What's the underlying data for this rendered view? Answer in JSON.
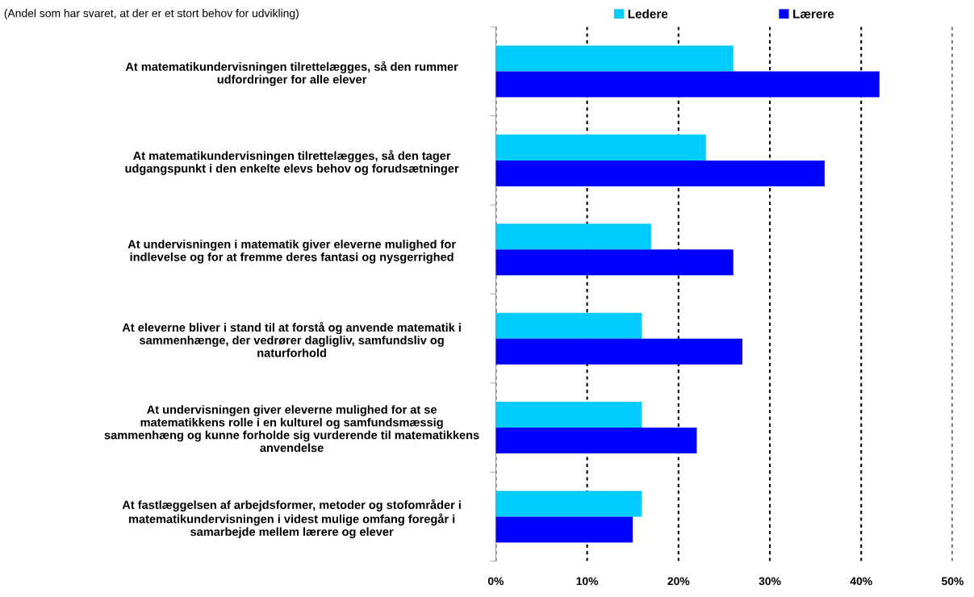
{
  "chart_data": {
    "type": "bar",
    "orientation": "horizontal",
    "subtitle": "(Andel som har svaret, at der er et stort behov for udvikling)",
    "categories": [
      "At matematikundervisningen tilrettelægges, så den rummer\nudfordringer for alle elever",
      "At matematikundervisningen tilrettelægges, så den tager\nudgangspunkt i den enkelte elevs behov og forudsætninger",
      "At undervisningen i matematik giver eleverne mulighed for\nindlevelse og for at fremme deres fantasi og nysgerrighed",
      "At eleverne bliver i stand til at forstå og anvende matematik i\nsammenhænge, der vedrører dagligliv, samfundsliv og\nnaturforhold",
      "At undervisningen giver eleverne mulighed for at se\nmatematikkens rolle i en kulturel og samfundsmæssig\nsammenhæng og kunne forholde sig vurderende til matematikkens\nanvendelse",
      "At fastlæggelsen af arbejdsformer, metoder og stofområder i\nmatematikundervisningen i videst mulige omfang foregår i\nsamarbejde mellem lærere og elever"
    ],
    "series": [
      {
        "name": "Ledere",
        "color": "#00ccff",
        "values": [
          26,
          23,
          17,
          16,
          16,
          16
        ]
      },
      {
        "name": "Lærere",
        "color": "#0000ff",
        "values": [
          42,
          36,
          26,
          27,
          22,
          15
        ]
      }
    ],
    "xlim": [
      0,
      50
    ],
    "xticks": [
      {
        "value": 0,
        "label": "0%"
      },
      {
        "value": 10,
        "label": "10%"
      },
      {
        "value": 20,
        "label": "20%"
      },
      {
        "value": 30,
        "label": "30%"
      },
      {
        "value": 40,
        "label": "40%"
      },
      {
        "value": 50,
        "label": "50%"
      }
    ],
    "grid": "x",
    "legend": "top"
  }
}
